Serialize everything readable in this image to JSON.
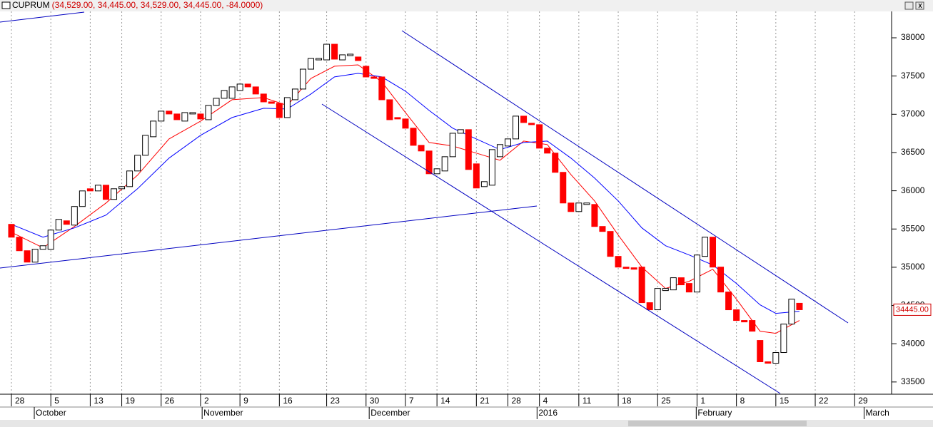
{
  "chart_data": {
    "type": "candlestick",
    "title": "CUPRUM",
    "subtitle": "(34,529.00, 34,445.00, 34,529.00, 34,445.00, -84.0000)",
    "up_color": "#ffffff",
    "down_color": "#ff0000",
    "outline_color": "#000000",
    "candles": {
      "open": [
        35561,
        35393,
        35216,
        35067,
        35235,
        35235,
        35486,
        35607,
        35551,
        35794,
        36026,
        35998,
        36073,
        35887,
        36026,
        36054,
        36259,
        36464,
        36706,
        36911,
        37041,
        37004,
        36911,
        37004,
        37004,
        36929,
        37116,
        37209,
        37209,
        37311,
        37395,
        37358,
        37265,
        37162,
        37143,
        36957,
        37190,
        37330,
        37590,
        37711,
        37711,
        37916,
        37711,
        37767,
        37749,
        37628,
        37488,
        37488,
        37190,
        36957,
        36939,
        36818,
        36594,
        36520,
        36222,
        36259,
        36445,
        36752,
        36799,
        36352,
        36054,
        36073,
        36445,
        36585,
        36678,
        36976,
        36883,
        36864,
        36557,
        36492,
        36241,
        35840,
        35728,
        35821,
        35821,
        35533,
        35468,
        35142,
        35002,
        34993,
        35002,
        34537,
        34444,
        34695,
        34704,
        34863,
        34788,
        34676,
        35142,
        35393,
        35002,
        34676,
        34444,
        34304,
        34304,
        34043,
        33764,
        33745,
        33885,
        34257,
        34529
      ],
      "close": [
        35393,
        35216,
        35067,
        35235,
        35281,
        35486,
        35626,
        35561,
        35794,
        35998,
        35998,
        36073,
        35887,
        36026,
        36054,
        36259,
        36464,
        36725,
        36911,
        37041,
        37004,
        36929,
        37022,
        37022,
        36939,
        37116,
        37209,
        37311,
        37358,
        37395,
        37358,
        37265,
        37162,
        37143,
        36957,
        37218,
        37330,
        37590,
        37730,
        37730,
        37916,
        37721,
        37777,
        37786,
        37702,
        37488,
        37469,
        37190,
        36929,
        36939,
        36818,
        36594,
        36520,
        36222,
        36287,
        36445,
        36752,
        36799,
        36278,
        36036,
        36119,
        36538,
        36604,
        36678,
        36976,
        36892,
        36864,
        36557,
        36492,
        36241,
        35840,
        35728,
        35840,
        35840,
        35533,
        35468,
        35142,
        35002,
        34984,
        34974,
        34537,
        34444,
        34723,
        34723,
        34863,
        34770,
        34676,
        35160,
        35393,
        35002,
        34676,
        34444,
        34304,
        34285,
        34164,
        33764,
        33745,
        33885,
        34257,
        34583,
        34445
      ]
    },
    "ma_lines": [
      {
        "color": "#ff0000",
        "x": [
          0,
          4,
          8,
          12,
          16,
          20,
          24,
          28,
          32,
          35,
          38,
          41,
          44,
          47,
          50,
          53,
          56,
          59,
          62,
          65,
          68,
          71,
          74,
          77,
          80,
          83,
          86,
          89,
          92,
          95,
          97,
          100
        ],
        "values": [
          35458,
          35254,
          35533,
          35840,
          36203,
          36678,
          36911,
          37190,
          37218,
          37116,
          37469,
          37628,
          37646,
          37423,
          37022,
          36631,
          36585,
          36492,
          36399,
          36650,
          36604,
          36212,
          35868,
          35421,
          35002,
          34723,
          34816,
          34974,
          34583,
          34164,
          34136,
          34304
        ]
      },
      {
        "color": "#0000ff",
        "x": [
          0,
          4,
          8,
          12,
          16,
          20,
          24,
          28,
          32,
          35,
          38,
          41,
          44,
          47,
          50,
          53,
          56,
          59,
          62,
          65,
          68,
          71,
          74,
          77,
          80,
          83,
          86,
          89,
          92,
          95,
          97,
          100
        ],
        "values": [
          35561,
          35393,
          35514,
          35682,
          36026,
          36427,
          36725,
          36957,
          37078,
          37069,
          37265,
          37488,
          37535,
          37488,
          37302,
          37050,
          36818,
          36678,
          36538,
          36631,
          36650,
          36427,
          36166,
          35868,
          35514,
          35281,
          35160,
          35030,
          34788,
          34509,
          34397,
          34425
        ]
      }
    ],
    "xlim": [
      -1.45,
      111.6
    ],
    "xticks": [
      {
        "value": 0,
        "label": "28"
      },
      {
        "value": 5,
        "label": "5"
      },
      {
        "value": 10,
        "label": "13"
      },
      {
        "value": 14,
        "label": "19"
      },
      {
        "value": 19,
        "label": "26"
      },
      {
        "value": 24,
        "label": "2"
      },
      {
        "value": 29,
        "label": "9"
      },
      {
        "value": 34,
        "label": "16"
      },
      {
        "value": 40,
        "label": "23"
      },
      {
        "value": 45,
        "label": "30"
      },
      {
        "value": 50,
        "label": "7"
      },
      {
        "value": 54,
        "label": "14"
      },
      {
        "value": 59,
        "label": "21"
      },
      {
        "value": 63,
        "label": "28"
      },
      {
        "value": 67,
        "label": "4"
      },
      {
        "value": 72,
        "label": "11"
      },
      {
        "value": 77,
        "label": "18"
      },
      {
        "value": 82,
        "label": "25"
      },
      {
        "value": 87,
        "label": "1"
      },
      {
        "value": 92,
        "label": "8"
      },
      {
        "value": 97,
        "label": "15"
      },
      {
        "value": 102,
        "label": "22"
      },
      {
        "value": 107,
        "label": "29"
      }
    ],
    "month_ticks": [
      {
        "value": 2.9,
        "label": "October"
      },
      {
        "value": 24.2,
        "label": "November"
      },
      {
        "value": 45.4,
        "label": "December"
      },
      {
        "value": 66.7,
        "label": "2016"
      },
      {
        "value": 86.9,
        "label": "February"
      },
      {
        "value": 108.2,
        "label": "March"
      }
    ],
    "ylim": [
      33340,
      38345
    ],
    "yticks": [
      33500,
      34000,
      34500,
      35000,
      35500,
      36000,
      36500,
      37000,
      37500,
      38000
    ],
    "last_value_label": {
      "value": 34445,
      "label": "34445.00"
    },
    "grid": true
  }
}
